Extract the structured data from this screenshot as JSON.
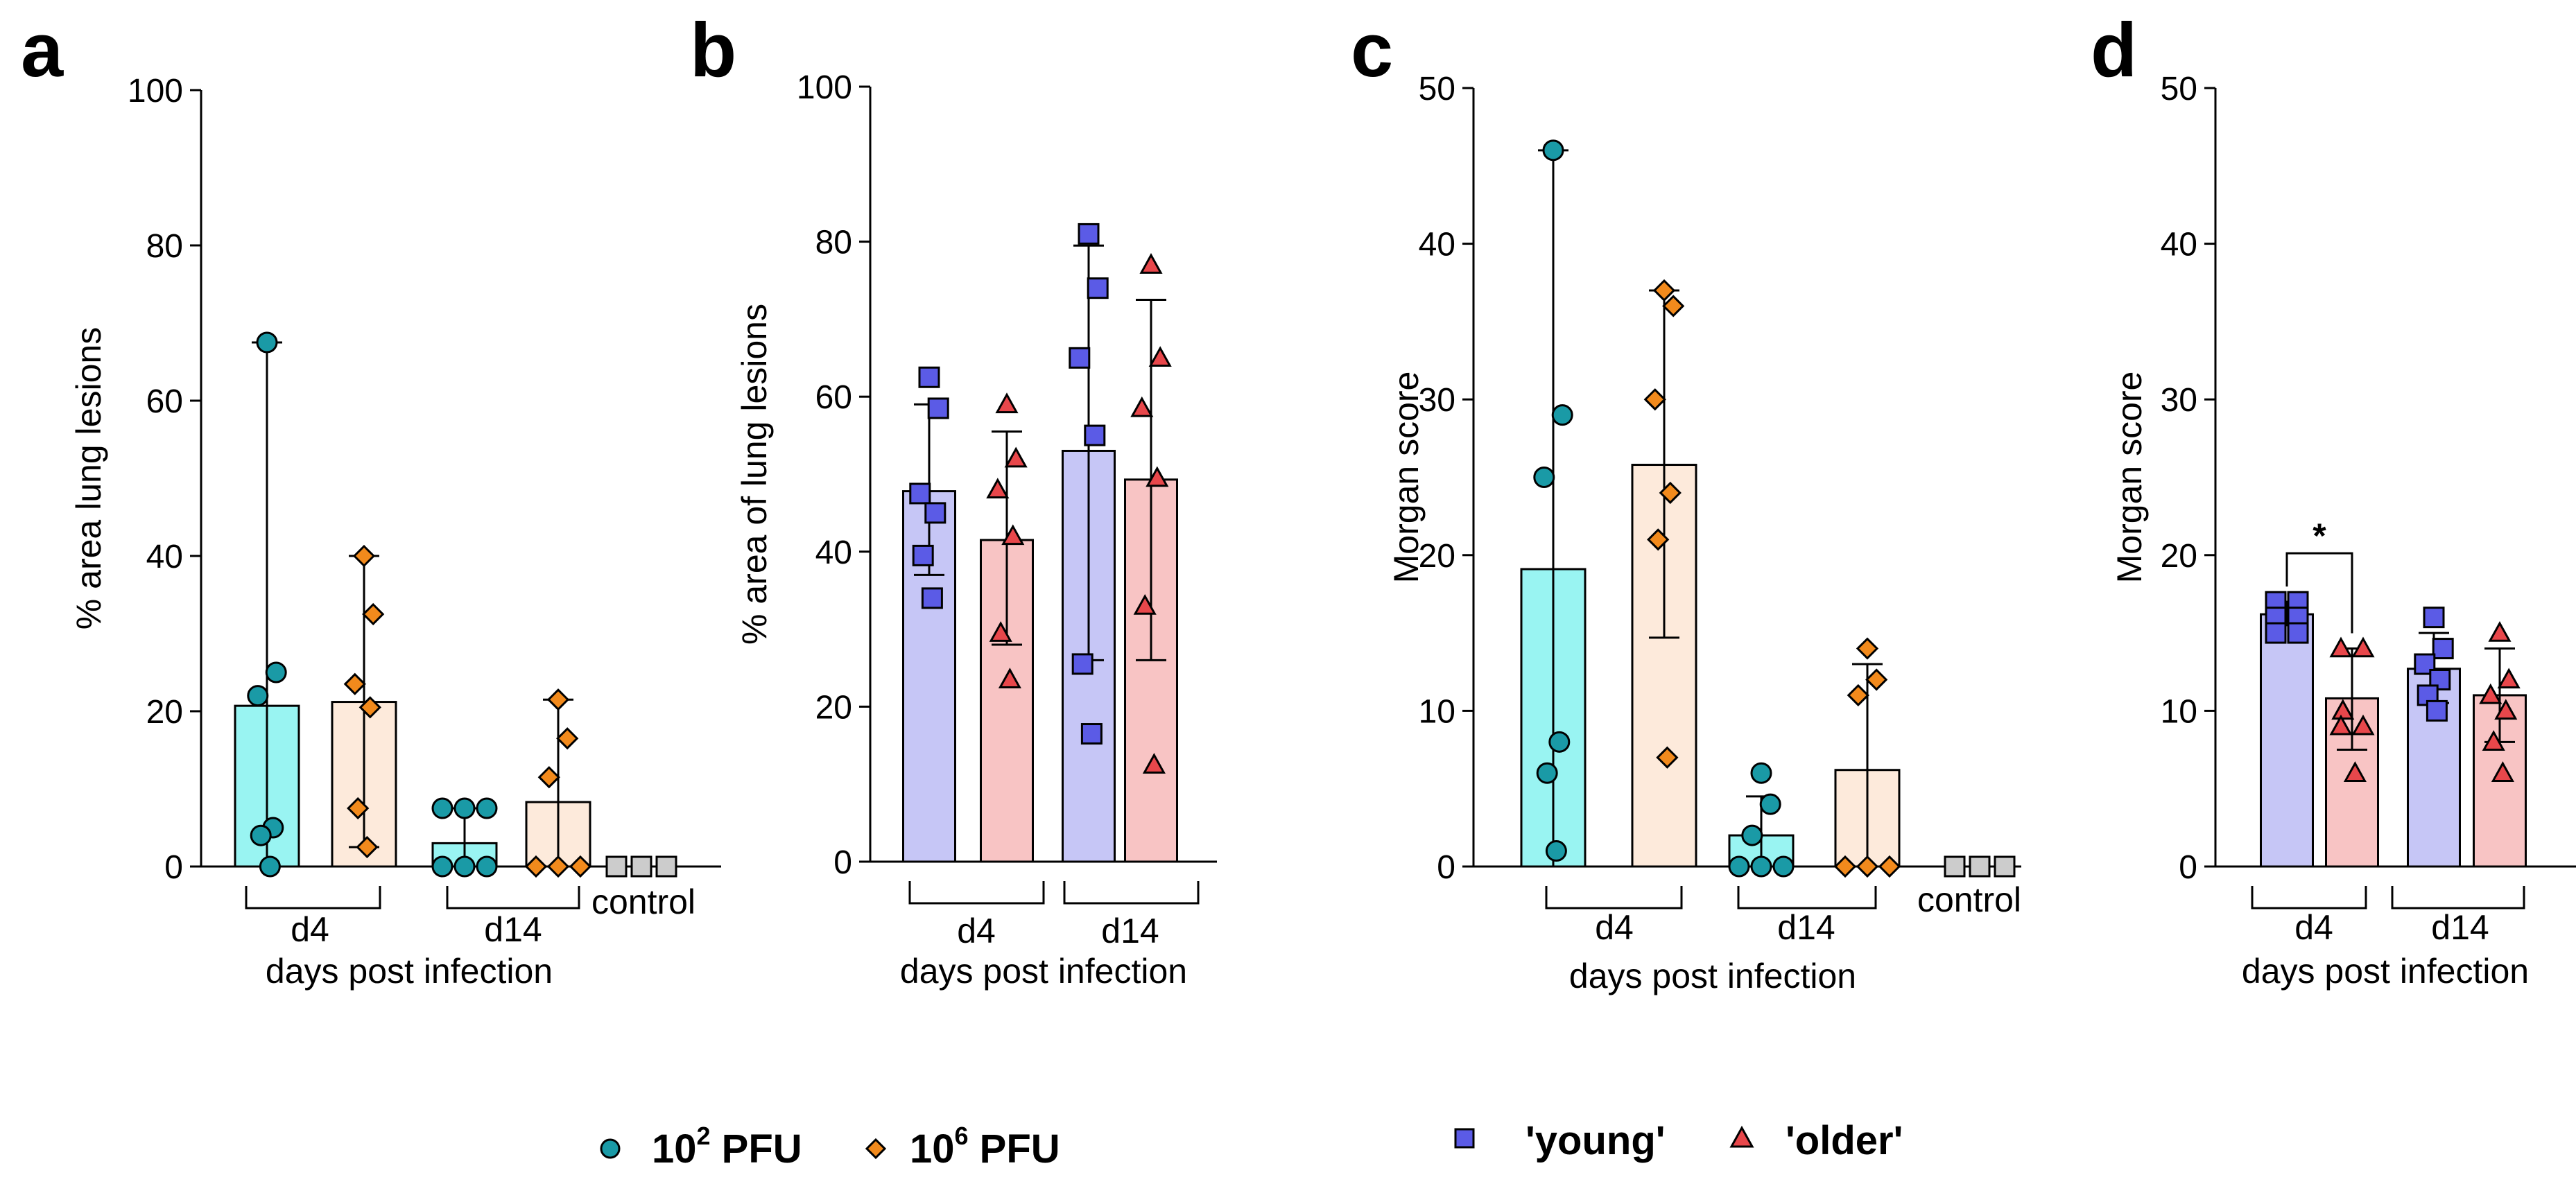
{
  "legend_left": {
    "items": [
      {
        "base": "10",
        "sup": "2",
        "unit": " PFU",
        "symbol": "circle",
        "color": "#1a9aa6"
      },
      {
        "base": "10",
        "sup": "6",
        "unit": " PFU",
        "symbol": "diamond",
        "color": "#f28a1c"
      }
    ]
  },
  "legend_right": {
    "items": [
      {
        "label": "'young'",
        "symbol": "square",
        "color": "#5b5be6"
      },
      {
        "label": "'older'",
        "symbol": "triangle",
        "color": "#e8474b"
      }
    ]
  },
  "chart_data": [
    {
      "panel": "a",
      "type": "bar",
      "ylabel": "% area lung lesions",
      "xlabel": "days post infection",
      "ylim": [
        0,
        100
      ],
      "yticks": [
        0,
        20,
        40,
        60,
        80,
        100
      ],
      "groups": [
        {
          "label": "d4",
          "bar_indices": [
            0,
            1
          ]
        },
        {
          "label": "d14",
          "bar_indices": [
            2,
            3
          ]
        },
        {
          "label": "control",
          "bar_indices": [
            4
          ]
        }
      ],
      "bars": [
        {
          "series": "10^2 PFU",
          "mean": 20.7,
          "error": [
            0,
            67.5
          ],
          "fill": "#99f4f2",
          "marker": "circle",
          "marker_color": "#1a9aa6",
          "points": [
            67.5,
            25,
            22,
            5,
            4,
            0
          ]
        },
        {
          "series": "10^6 PFU",
          "mean": 21.2,
          "error": [
            2.5,
            40
          ],
          "fill": "#fdeadb",
          "marker": "diamond",
          "marker_color": "#f28a1c",
          "points": [
            40,
            32.5,
            23.5,
            20.5,
            7.5,
            2.5
          ]
        },
        {
          "series": "10^2 PFU",
          "mean": 3,
          "error": [
            0,
            7.5
          ],
          "fill": "#99f4f2",
          "marker": "circle",
          "marker_color": "#1a9aa6",
          "points": [
            7.5,
            7.5,
            7.5,
            0,
            0,
            0
          ]
        },
        {
          "series": "10^6 PFU",
          "mean": 8.3,
          "error": [
            0,
            21.5
          ],
          "fill": "#fdeadb",
          "marker": "diamond",
          "marker_color": "#f28a1c",
          "points": [
            21.5,
            16.5,
            11.5,
            0,
            0,
            0
          ]
        },
        {
          "series": "control",
          "mean": 0,
          "error": null,
          "fill": null,
          "marker": "square",
          "marker_color": "#cccccc",
          "points": [
            0,
            0,
            0
          ]
        }
      ]
    },
    {
      "panel": "b",
      "type": "bar",
      "ylabel": "% area of lung lesions",
      "xlabel": "days post infection",
      "ylim": [
        0,
        100
      ],
      "yticks": [
        0,
        20,
        40,
        60,
        80,
        100
      ],
      "groups": [
        {
          "label": "d4",
          "bar_indices": [
            0,
            1
          ]
        },
        {
          "label": "d14",
          "bar_indices": [
            2,
            3
          ]
        }
      ],
      "bars": [
        {
          "series": "'young'",
          "mean": 47.8,
          "error": [
            37,
            59
          ],
          "fill": "#c6c6f6",
          "marker": "square",
          "marker_color": "#5b5be6",
          "points": [
            62.5,
            58.5,
            47.5,
            45,
            39.5,
            34
          ]
        },
        {
          "series": "'older'",
          "mean": 41.5,
          "error": [
            28,
            55.5
          ],
          "fill": "#f8c4c4",
          "marker": "triangle",
          "marker_color": "#e8474b",
          "points": [
            59,
            52,
            48,
            42,
            29.5,
            23.5
          ]
        },
        {
          "series": "'young'",
          "mean": 53,
          "error": [
            26,
            79.5
          ],
          "fill": "#c6c6f6",
          "marker": "square",
          "marker_color": "#5b5be6",
          "points": [
            81,
            74,
            65,
            55,
            25.5,
            16.5
          ]
        },
        {
          "series": "'older'",
          "mean": 49.3,
          "error": [
            26,
            72.5
          ],
          "fill": "#f8c4c4",
          "marker": "triangle",
          "marker_color": "#e8474b",
          "points": [
            77,
            65,
            58.5,
            49.5,
            33,
            12.5
          ]
        }
      ]
    },
    {
      "panel": "c",
      "type": "bar",
      "ylabel": "Morgan score",
      "xlabel": "days post infection",
      "ylim": [
        0,
        50
      ],
      "yticks": [
        0,
        10,
        20,
        30,
        40,
        50
      ],
      "groups": [
        {
          "label": "d4",
          "bar_indices": [
            0,
            1
          ]
        },
        {
          "label": "d14",
          "bar_indices": [
            2,
            3
          ]
        },
        {
          "label": "control",
          "bar_indices": [
            4
          ]
        }
      ],
      "bars": [
        {
          "series": "10^2 PFU",
          "mean": 19.1,
          "error": [
            0,
            46
          ],
          "fill": "#99f4f2",
          "marker": "circle",
          "marker_color": "#1a9aa6",
          "points": [
            46,
            29,
            25,
            8,
            6,
            1
          ]
        },
        {
          "series": "10^6 PFU",
          "mean": 25.8,
          "error": [
            14.7,
            37
          ],
          "fill": "#fdeadb",
          "marker": "diamond",
          "marker_color": "#f28a1c",
          "points": [
            37,
            36,
            30,
            24,
            21,
            7
          ]
        },
        {
          "series": "10^2 PFU",
          "mean": 2,
          "error": [
            0,
            4.5
          ],
          "fill": "#99f4f2",
          "marker": "circle",
          "marker_color": "#1a9aa6",
          "points": [
            6,
            4,
            2,
            0,
            0,
            0
          ]
        },
        {
          "series": "10^6 PFU",
          "mean": 6.2,
          "error": [
            0,
            13
          ],
          "fill": "#fdeadb",
          "marker": "diamond",
          "marker_color": "#f28a1c",
          "points": [
            14,
            12,
            11,
            0,
            0,
            0
          ]
        },
        {
          "series": "control",
          "mean": 0,
          "error": null,
          "fill": null,
          "marker": "square",
          "marker_color": "#cccccc",
          "points": [
            0,
            0,
            0
          ]
        }
      ]
    },
    {
      "panel": "d",
      "type": "bar",
      "ylabel": "Morgan score",
      "xlabel": "days post infection",
      "ylim": [
        0,
        50
      ],
      "yticks": [
        0,
        10,
        20,
        30,
        40,
        50
      ],
      "groups": [
        {
          "label": "d4",
          "bar_indices": [
            0,
            1
          ]
        },
        {
          "label": "d14",
          "bar_indices": [
            2,
            3
          ]
        }
      ],
      "significance": {
        "label": "*",
        "between": [
          0,
          1
        ]
      },
      "bars": [
        {
          "series": "'young'",
          "mean": 16.2,
          "error": [
            15.5,
            17
          ],
          "fill": "#c6c6f6",
          "marker": "square",
          "marker_color": "#5b5be6",
          "points": [
            17,
            17,
            16,
            16,
            15,
            15
          ]
        },
        {
          "series": "'older'",
          "mean": 10.8,
          "error": [
            7.5,
            14
          ],
          "fill": "#f8c4c4",
          "marker": "triangle",
          "marker_color": "#e8474b",
          "points": [
            14,
            14,
            10,
            9,
            9,
            6
          ]
        },
        {
          "series": "'young'",
          "mean": 12.7,
          "error": [
            10.5,
            15
          ],
          "fill": "#c6c6f6",
          "marker": "square",
          "marker_color": "#5b5be6",
          "points": [
            16,
            14,
            13,
            12,
            11,
            10
          ]
        },
        {
          "series": "'older'",
          "mean": 11,
          "error": [
            8,
            14
          ],
          "fill": "#f8c4c4",
          "marker": "triangle",
          "marker_color": "#e8474b",
          "points": [
            15,
            12,
            11,
            10,
            8,
            6
          ]
        }
      ]
    }
  ]
}
